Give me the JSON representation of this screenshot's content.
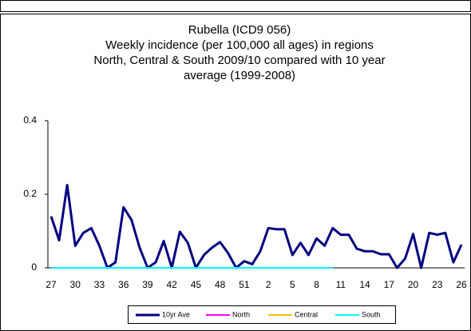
{
  "chart_data": {
    "type": "line",
    "title": [
      "Rubella (ICD9 056)",
      "Weekly incidence (per 100,000 all ages) in regions",
      "North, Central & South 2009/10 compared with 10 year",
      "average (1999-2008)"
    ],
    "categories": [
      27,
      null,
      null,
      30,
      null,
      null,
      33,
      null,
      null,
      36,
      null,
      null,
      39,
      null,
      null,
      42,
      null,
      null,
      45,
      null,
      null,
      48,
      null,
      null,
      51,
      null,
      null,
      2,
      null,
      null,
      5,
      null,
      null,
      8,
      null,
      null,
      11,
      null,
      null,
      14,
      null,
      null,
      17,
      null,
      null,
      20,
      null,
      null,
      23,
      null,
      null,
      26
    ],
    "ylim": [
      0,
      0.4
    ],
    "yticks": [
      0,
      0.2,
      0.4
    ],
    "series": [
      {
        "name": "10yr Ave",
        "color": "#000080",
        "values": [
          0.14,
          0.075,
          0.225,
          0.06,
          0.095,
          0.108,
          0.06,
          0.0,
          0.015,
          0.165,
          0.13,
          0.055,
          0.0,
          0.015,
          0.073,
          0.0,
          0.098,
          0.068,
          0.0,
          0.035,
          0.055,
          0.07,
          0.04,
          0.0,
          0.018,
          0.01,
          0.045,
          0.108,
          0.105,
          0.105,
          0.035,
          0.068,
          0.035,
          0.08,
          0.06,
          0.108,
          0.09,
          0.09,
          0.052,
          0.045,
          0.045,
          0.037,
          0.037,
          0.0,
          0.025,
          0.092,
          0.0,
          0.095,
          0.09,
          0.095,
          0.015,
          0.063
        ]
      },
      {
        "name": "North",
        "color": "#ff00ff",
        "values": [
          0,
          0,
          0,
          0,
          0,
          0,
          0,
          0,
          0,
          0,
          0,
          0,
          0,
          0,
          0,
          0,
          0,
          0,
          0,
          0,
          0,
          0,
          0,
          0,
          0,
          0,
          0,
          0,
          0,
          0,
          0,
          0,
          0,
          0,
          0,
          0,
          null,
          null,
          null,
          null,
          null,
          null,
          null,
          null,
          null,
          null,
          null,
          null,
          null,
          null,
          null,
          null
        ]
      },
      {
        "name": "Central",
        "color": "#ffc000",
        "values": [
          0,
          0,
          0,
          0,
          0,
          0,
          0,
          0,
          0,
          0,
          0,
          0,
          0,
          0,
          0,
          0,
          0,
          0,
          0,
          0,
          0,
          0,
          0,
          0,
          0,
          0,
          0,
          0,
          0,
          0,
          0,
          0,
          0,
          0,
          0,
          0,
          null,
          null,
          null,
          null,
          null,
          null,
          null,
          null,
          null,
          null,
          null,
          null,
          null,
          null,
          null,
          null
        ]
      },
      {
        "name": "South",
        "color": "#00ffff",
        "values": [
          0,
          0,
          0,
          0,
          0,
          0,
          0,
          0,
          0,
          0,
          0,
          0,
          0,
          0,
          0,
          0,
          0,
          0,
          0,
          0,
          0,
          0,
          0,
          0,
          0,
          0,
          0,
          0,
          0,
          0,
          0,
          0,
          0,
          0,
          0,
          0,
          null,
          null,
          null,
          null,
          null,
          null,
          null,
          null,
          null,
          null,
          null,
          null,
          null,
          null,
          null,
          null
        ]
      }
    ]
  }
}
